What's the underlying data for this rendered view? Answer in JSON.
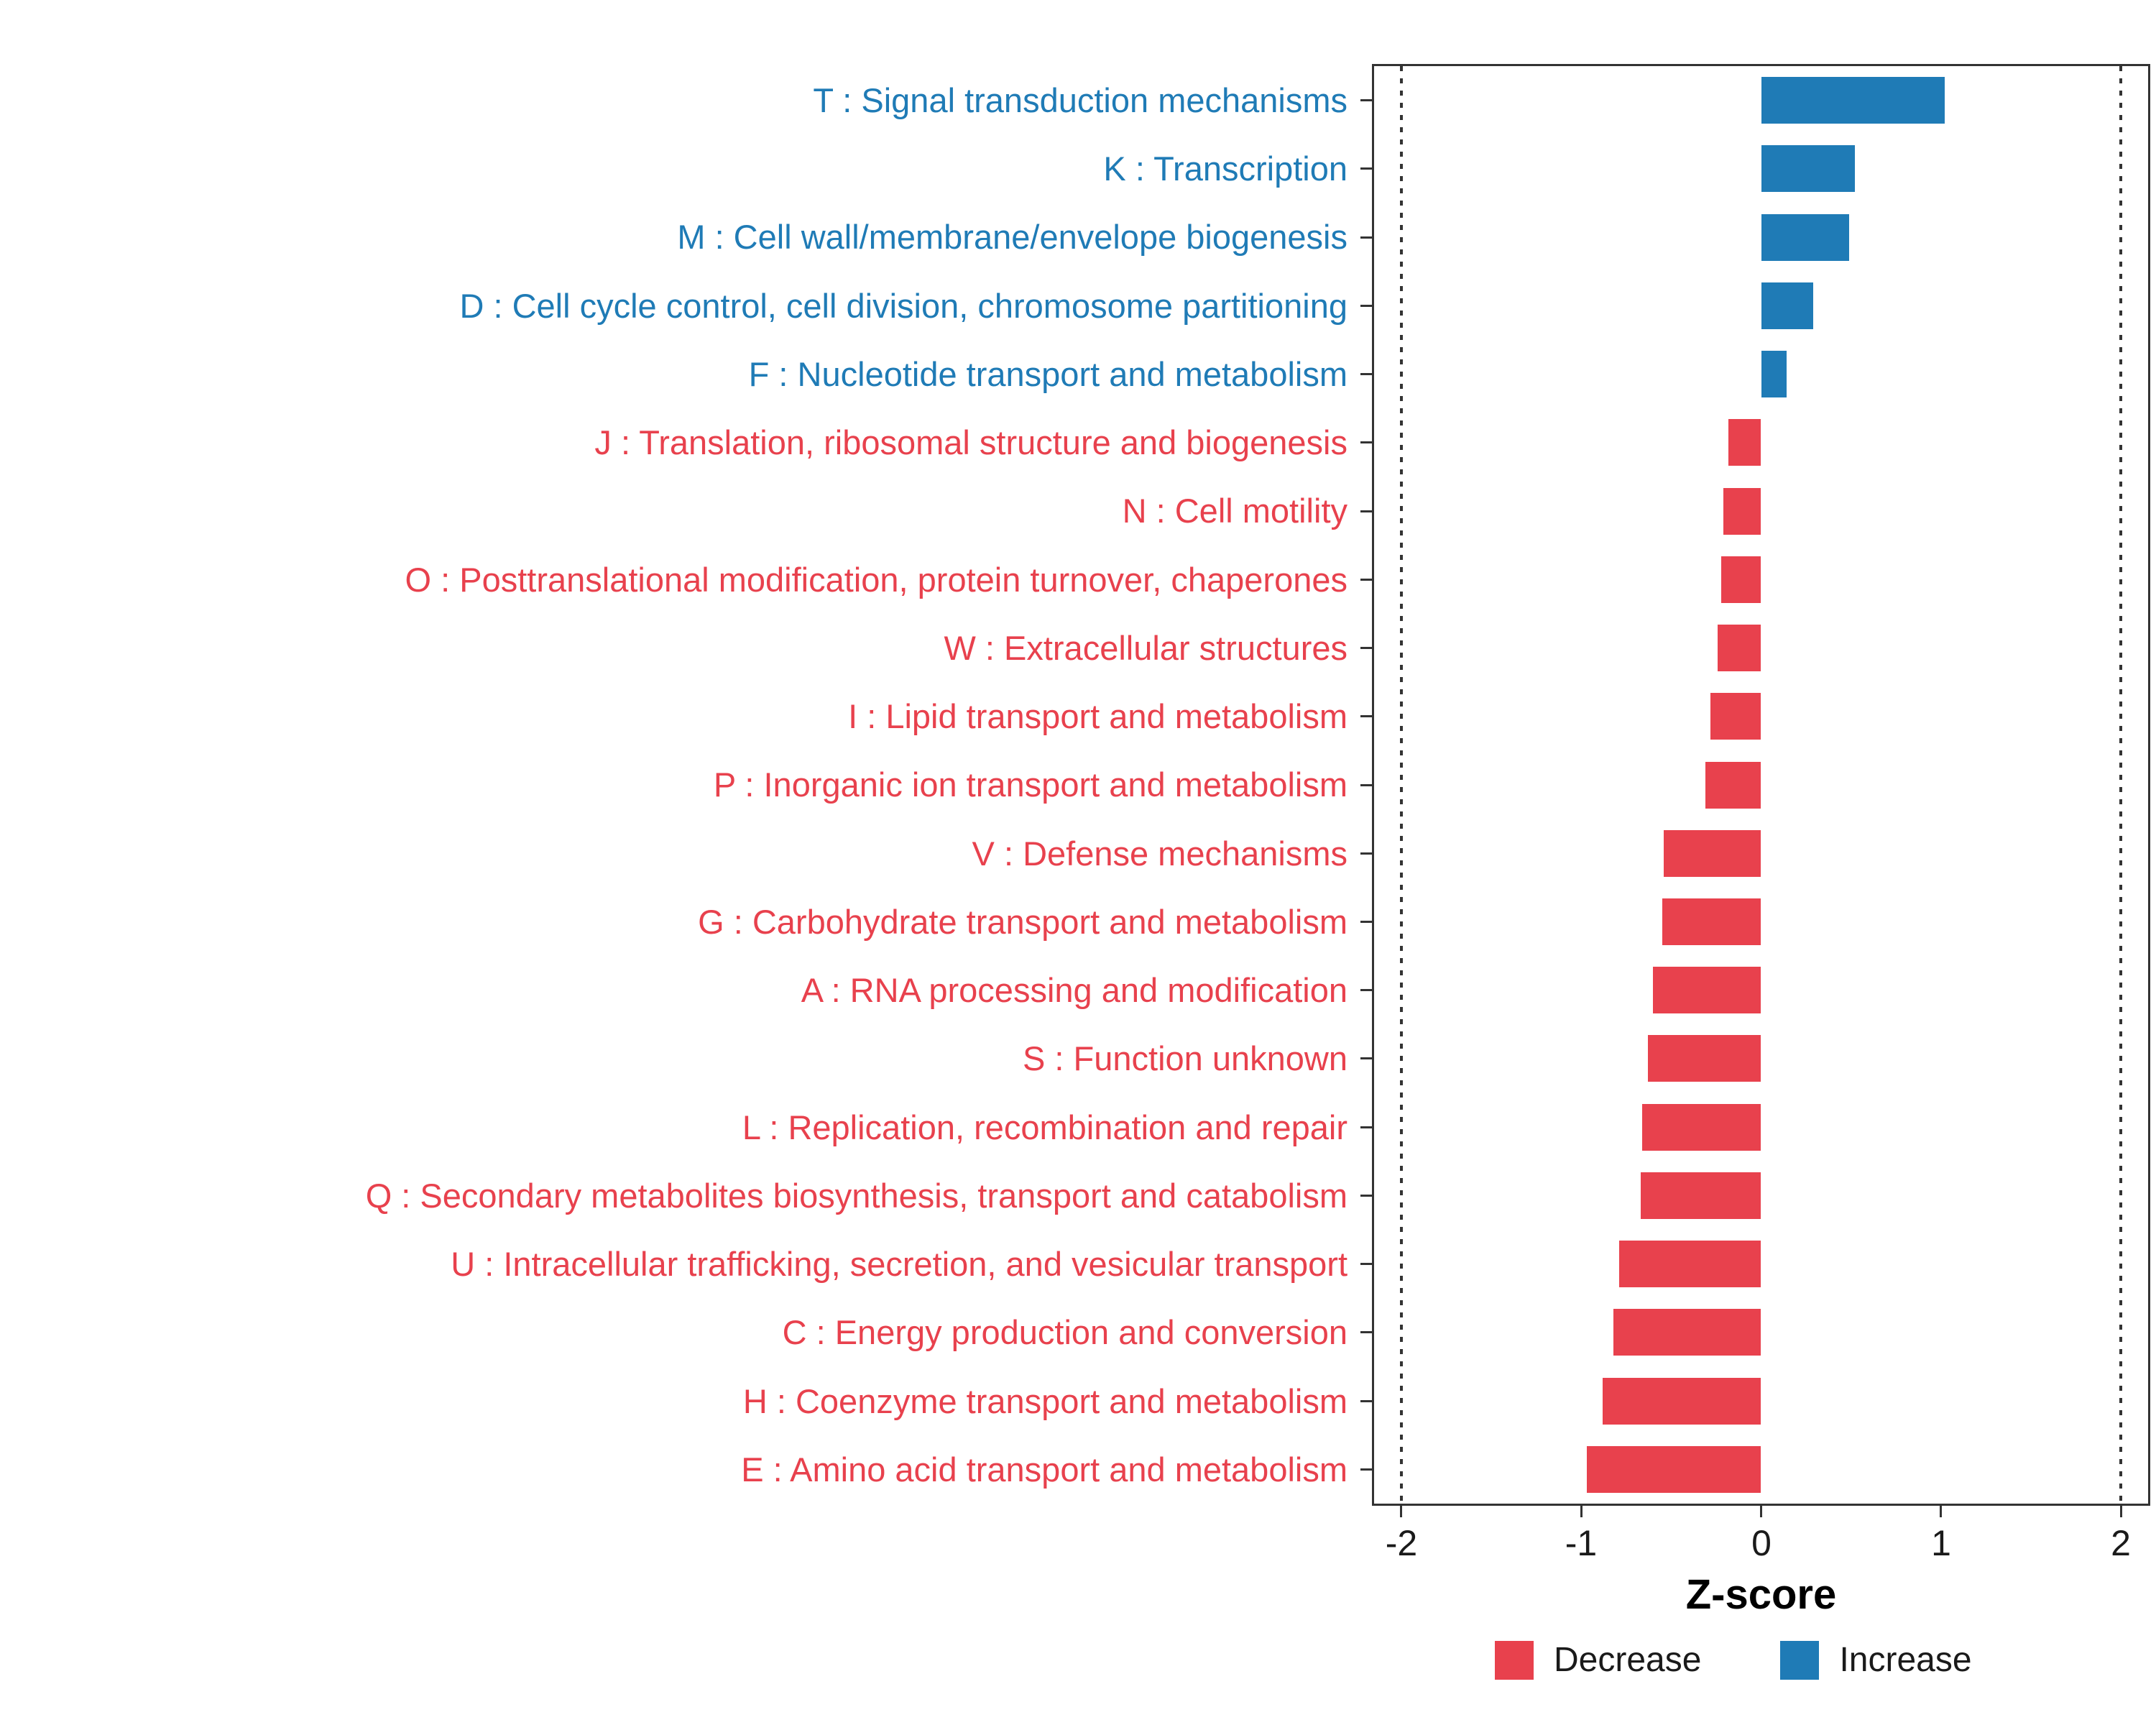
{
  "chart_data": {
    "type": "bar",
    "orientation": "horizontal",
    "title": "",
    "xlabel": "Z-score",
    "ylabel": "",
    "xlim": [
      -2.15,
      2.15
    ],
    "x_ticks": [
      -2,
      -1,
      0,
      1,
      2
    ],
    "reference_lines": [
      -2,
      2
    ],
    "grid": false,
    "legend_position": "bottom-right",
    "categories": [
      "T : Signal transduction mechanisms",
      "K : Transcription",
      "M : Cell wall/membrane/envelope biogenesis",
      "D : Cell cycle control, cell division, chromosome partitioning",
      "F : Nucleotide transport and metabolism",
      "J : Translation, ribosomal structure and biogenesis",
      "N : Cell motility",
      "O : Posttranslational modification, protein turnover, chaperones",
      "W : Extracellular structures",
      "I : Lipid transport and metabolism",
      "P : Inorganic ion transport and metabolism",
      "V : Defense mechanisms",
      "G : Carbohydrate transport and metabolism",
      "A : RNA processing and modification",
      "S : Function unknown",
      "L : Replication, recombination and repair",
      "Q : Secondary metabolites biosynthesis, transport and catabolism",
      "U : Intracellular trafficking, secretion, and vesicular transport",
      "C : Energy production and conversion",
      "H : Coenzyme transport and metabolism",
      "E : Amino acid transport and metabolism"
    ],
    "values": [
      1.02,
      0.52,
      0.49,
      0.29,
      0.14,
      -0.18,
      -0.21,
      -0.22,
      -0.24,
      -0.28,
      -0.31,
      -0.54,
      -0.55,
      -0.6,
      -0.63,
      -0.66,
      -0.67,
      -0.79,
      -0.82,
      -0.88,
      -0.97
    ],
    "groups": [
      "Increase",
      "Increase",
      "Increase",
      "Increase",
      "Increase",
      "Decrease",
      "Decrease",
      "Decrease",
      "Decrease",
      "Decrease",
      "Decrease",
      "Decrease",
      "Decrease",
      "Decrease",
      "Decrease",
      "Decrease",
      "Decrease",
      "Decrease",
      "Decrease",
      "Decrease",
      "Decrease"
    ],
    "colors": {
      "Decrease": "#E8414D",
      "Increase": "#1F7BB6"
    },
    "legend": [
      {
        "label": "Decrease",
        "color": "#E8414D"
      },
      {
        "label": "Increase",
        "color": "#1F7BB6"
      }
    ]
  }
}
